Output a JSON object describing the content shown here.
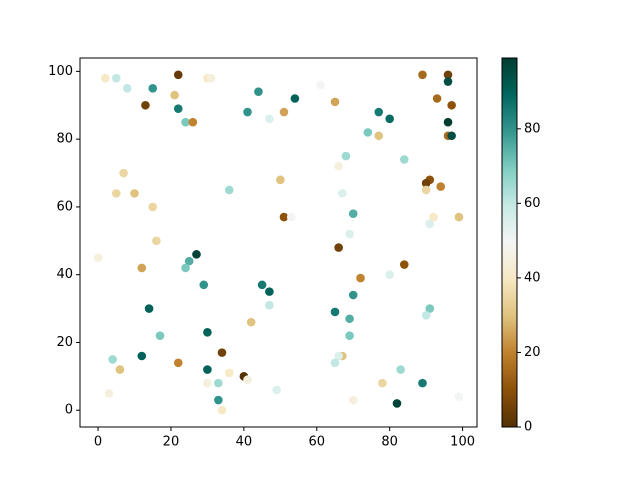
{
  "chart_data": {
    "type": "scatter",
    "x": [
      2,
      5,
      8,
      15,
      13,
      22,
      21,
      22,
      24,
      26,
      30,
      31,
      44,
      54,
      41,
      47,
      51,
      61,
      65,
      77,
      80,
      74,
      77,
      89,
      96,
      96,
      93,
      97,
      96,
      96,
      97,
      68,
      66,
      84,
      7,
      5,
      10,
      15,
      36,
      50,
      51,
      53,
      67,
      70,
      69,
      91,
      90,
      90,
      94,
      92,
      91,
      99,
      0,
      16,
      27,
      25,
      24,
      12,
      66,
      72,
      80,
      84,
      29,
      45,
      47,
      70,
      14,
      65,
      69,
      91,
      90,
      42,
      47,
      17,
      30,
      69,
      4,
      12,
      22,
      34,
      6,
      30,
      36,
      40,
      41,
      30,
      33,
      33,
      49,
      3,
      34,
      67,
      66,
      65,
      83,
      78,
      89,
      70,
      82,
      99
    ],
    "y": [
      98,
      98,
      95,
      95,
      90,
      99,
      93,
      89,
      85,
      85,
      98,
      98,
      94,
      92,
      88,
      86,
      88,
      96,
      91,
      88,
      86,
      82,
      81,
      99,
      99,
      97,
      92,
      90,
      85,
      81,
      81,
      75,
      72,
      74,
      70,
      64,
      64,
      60,
      65,
      68,
      57,
      57,
      64,
      58,
      52,
      68,
      67,
      65,
      66,
      57,
      55,
      57,
      45,
      50,
      46,
      44,
      42,
      42,
      48,
      39,
      40,
      43,
      37,
      37,
      35,
      34,
      30,
      29,
      27,
      30,
      28,
      26,
      31,
      22,
      23,
      22,
      15,
      16,
      14,
      17,
      12,
      12,
      11,
      10,
      9,
      8,
      8,
      3,
      6,
      5,
      0,
      16,
      16,
      14,
      12,
      8,
      8,
      3,
      2,
      4
    ],
    "c": [
      40,
      60,
      60,
      80,
      5,
      3,
      30,
      85,
      70,
      20,
      40,
      45,
      80,
      90,
      80,
      55,
      25,
      50,
      25,
      85,
      88,
      70,
      30,
      15,
      5,
      95,
      15,
      10,
      99,
      15,
      95,
      65,
      45,
      65,
      35,
      35,
      30,
      35,
      65,
      30,
      10,
      50,
      55,
      75,
      55,
      10,
      5,
      35,
      20,
      40,
      55,
      30,
      45,
      35,
      97,
      75,
      70,
      25,
      5,
      20,
      55,
      10,
      80,
      85,
      90,
      80,
      90,
      85,
      75,
      70,
      60,
      30,
      60,
      70,
      90,
      70,
      65,
      90,
      20,
      5,
      30,
      90,
      40,
      0,
      45,
      45,
      65,
      80,
      55,
      45,
      40,
      30,
      55,
      60,
      65,
      35,
      85,
      45,
      97,
      50
    ],
    "colorscale": [
      "#543005",
      "#8c510a",
      "#bf812d",
      "#dfc27d",
      "#f6e8c3",
      "#f5f5f5",
      "#c7eae5",
      "#80cdc1",
      "#35978f",
      "#01665e",
      "#003c30"
    ],
    "clim": [
      0,
      99
    ],
    "cticks": [
      0,
      20,
      40,
      60,
      80
    ],
    "xlim": [
      -4.95,
      103.95
    ],
    "ylim": [
      -4.95,
      103.95
    ],
    "xticks": [
      0,
      20,
      40,
      60,
      80,
      100
    ],
    "yticks": [
      0,
      20,
      40,
      60,
      80,
      100
    ]
  }
}
